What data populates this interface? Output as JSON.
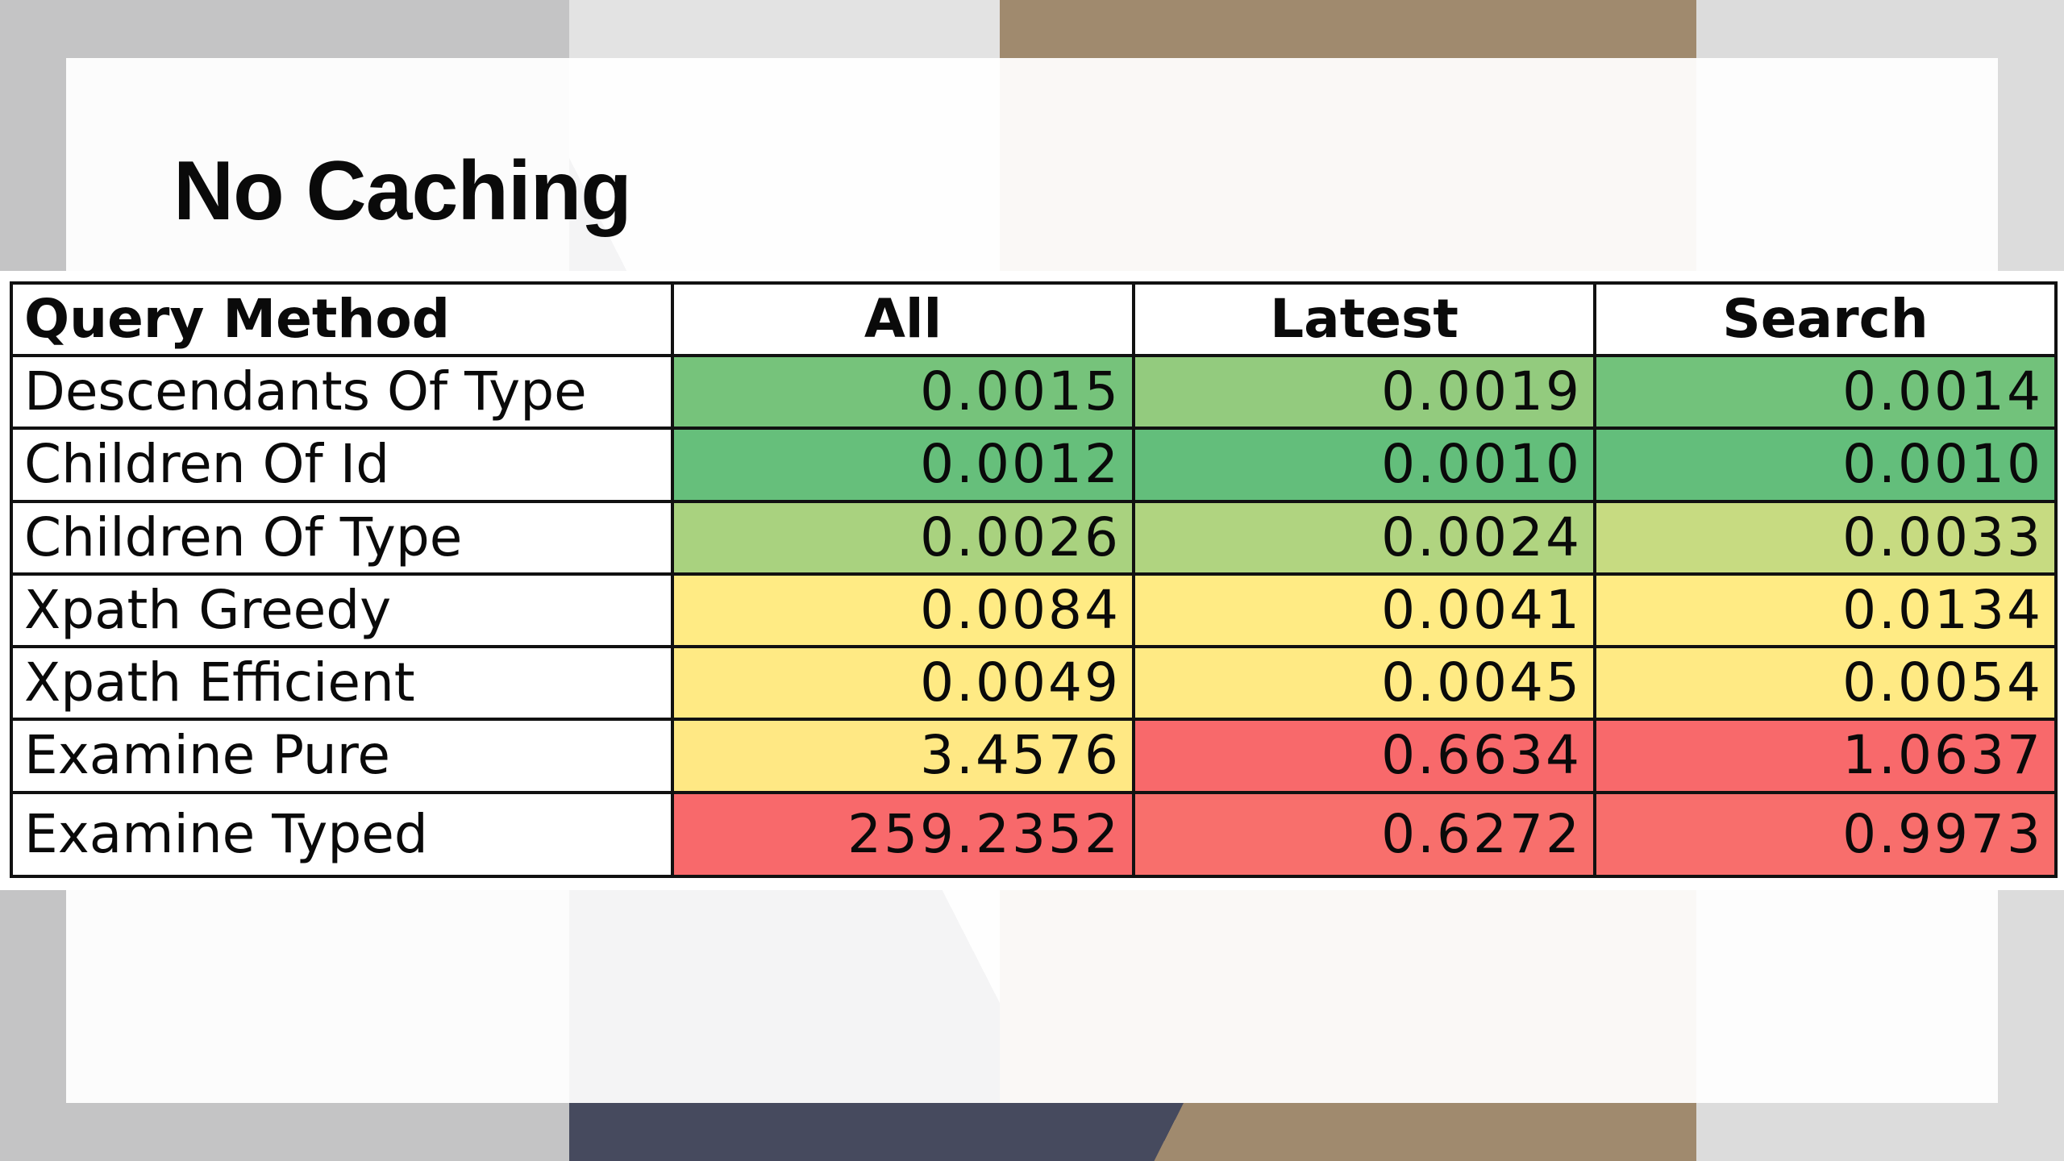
{
  "slide": {
    "title": "No Caching"
  },
  "table": {
    "headers": [
      "Query Method",
      "All",
      "Latest",
      "Search"
    ],
    "rows": [
      {
        "method": "Descendants Of Type",
        "all": "0.0015",
        "latest": "0.0019",
        "search": "0.0014",
        "colors": {
          "all": "#76c37b",
          "latest": "#93cb7e",
          "search": "#72c27b"
        }
      },
      {
        "method": "Children Of Id",
        "all": "0.0012",
        "latest": "0.0010",
        "search": "0.0010",
        "colors": {
          "all": "#66bf7b",
          "latest": "#63be7b",
          "search": "#63be7b"
        }
      },
      {
        "method": "Children Of Type",
        "all": "0.0026",
        "latest": "0.0024",
        "search": "0.0033",
        "colors": {
          "all": "#a9d27f",
          "latest": "#b0d480",
          "search": "#c7db81"
        }
      },
      {
        "method": "Xpath Greedy",
        "all": "0.0084",
        "latest": "0.0041",
        "search": "0.0134",
        "colors": {
          "all": "#ffeb84",
          "latest": "#ffeb84",
          "search": "#ffeb84"
        }
      },
      {
        "method": "Xpath Efficient",
        "all": "0.0049",
        "latest": "0.0045",
        "search": "0.0054",
        "colors": {
          "all": "#ffea84",
          "latest": "#ffea84",
          "search": "#ffea84"
        }
      },
      {
        "method": "Examine Pure",
        "all": "3.4576",
        "latest": "0.6634",
        "search": "1.0637",
        "colors": {
          "all": "#ffe884",
          "latest": "#f8696b",
          "search": "#f8696b"
        }
      },
      {
        "method": "Examine Typed",
        "all": "259.2352",
        "latest": "0.6272",
        "search": "0.9973",
        "colors": {
          "all": "#f8696b",
          "latest": "#f86f6c",
          "search": "#f86e6c"
        }
      }
    ]
  }
}
